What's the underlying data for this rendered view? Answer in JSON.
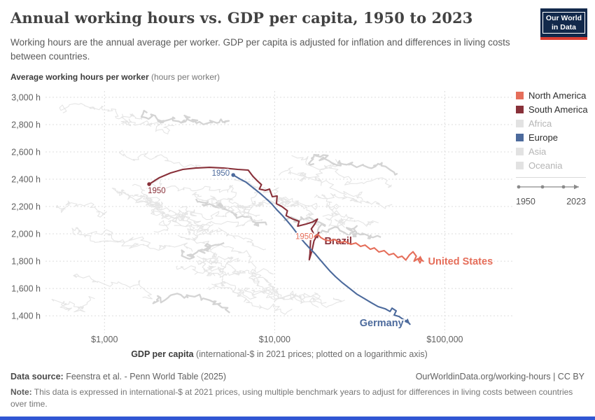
{
  "header": {
    "title": "Annual working hours vs. GDP per capita, 1950 to 2023",
    "subtitle": "Working hours are the annual average per worker. GDP per capita is adjusted for inflation and differences in living costs between countries.",
    "logo": {
      "line1": "Our World",
      "line2": "in Data",
      "bg_color": "#12294b",
      "accent_color": "#dc3e32"
    }
  },
  "legend": {
    "items": [
      {
        "label": "North America",
        "color": "#e56e5a",
        "active": true
      },
      {
        "label": "South America",
        "color": "#883039",
        "active": true
      },
      {
        "label": "Africa",
        "color": "#e2e2e2",
        "active": false
      },
      {
        "label": "Europe",
        "color": "#4c6a9c",
        "active": true
      },
      {
        "label": "Asia",
        "color": "#e2e2e2",
        "active": false
      },
      {
        "label": "Oceania",
        "color": "#e2e2e2",
        "active": false
      }
    ],
    "timeline": {
      "start": "1950",
      "end": "2023"
    }
  },
  "footer": {
    "source_prefix": "Data source:",
    "source_text": " Feenstra et al. - Penn World Table (2025)",
    "link_text": "OurWorldinData.org/working-hours | CC BY",
    "note_prefix": "Note:",
    "note_text": " This data is expressed in international-$ at 2021 prices, using multiple benchmark years to adjust for differences in living costs between countries over time."
  },
  "chart_data": {
    "type": "line",
    "title": "Annual working hours vs. GDP per capita, 1950 to 2023",
    "ylabel_bold": "Average working hours per worker",
    "ylabel_rest": " (hours per worker)",
    "xlabel_bold": "GDP per capita",
    "xlabel_rest": " (international-$ in 2021 prices; plotted on a logarithmic axis)",
    "x_axis": {
      "scale": "log",
      "min": 450,
      "max": 252000,
      "ticks": [
        {
          "value": 1000,
          "label": "$1,000"
        },
        {
          "value": 10000,
          "label": "$10,000"
        },
        {
          "value": 100000,
          "label": "$100,000"
        }
      ]
    },
    "y_axis": {
      "scale": "linear",
      "min": 1303,
      "max": 3036,
      "ticks": [
        {
          "value": 1400,
          "label": "1,400 h"
        },
        {
          "value": 1600,
          "label": "1,600 h"
        },
        {
          "value": 1800,
          "label": "1,800 h"
        },
        {
          "value": 2000,
          "label": "2,000 h"
        },
        {
          "value": 2200,
          "label": "2,200 h"
        },
        {
          "value": 2400,
          "label": "2,400 h"
        },
        {
          "value": 2600,
          "label": "2,600 h"
        },
        {
          "value": 2800,
          "label": "2,800 h"
        },
        {
          "value": 3000,
          "label": "3,000 h"
        }
      ]
    },
    "grid": {
      "on": true,
      "color": "#dcdcdc",
      "dash": "2,3"
    },
    "legend_position": "right",
    "year_range": {
      "start": 1950,
      "end": 2023
    },
    "series": [
      {
        "name": "Brazil",
        "continent": "South America",
        "color": "#883039",
        "start_year_label": {
          "text": "1950",
          "anchor": "start",
          "dx": -2,
          "dy": 13
        },
        "end_label": {
          "text": "Brazil",
          "anchor": "start",
          "dx": 8,
          "dy": 17
        },
        "points": [
          [
            1830,
            2364
          ],
          [
            2090,
            2410
          ],
          [
            2440,
            2446
          ],
          [
            2890,
            2472
          ],
          [
            3430,
            2482
          ],
          [
            4140,
            2487
          ],
          [
            5010,
            2482
          ],
          [
            6060,
            2472
          ],
          [
            6990,
            2467
          ],
          [
            7450,
            2421
          ],
          [
            7890,
            2390
          ],
          [
            8360,
            2360
          ],
          [
            8130,
            2328
          ],
          [
            8840,
            2318
          ],
          [
            9330,
            2328
          ],
          [
            9690,
            2272
          ],
          [
            10340,
            2277
          ],
          [
            10240,
            2221
          ],
          [
            11030,
            2200
          ],
          [
            11890,
            2169
          ],
          [
            11670,
            2133
          ],
          [
            12800,
            2108
          ],
          [
            13920,
            2092
          ],
          [
            13660,
            2056
          ],
          [
            15330,
            2072
          ],
          [
            16720,
            2087
          ],
          [
            17850,
            2108
          ],
          [
            17210,
            2072
          ],
          [
            16420,
            2036
          ],
          [
            16880,
            2005
          ],
          [
            16270,
            1959
          ],
          [
            16120,
            1856
          ],
          [
            15970,
            1810
          ],
          [
            16570,
            1877
          ],
          [
            17040,
            1949
          ],
          [
            17690,
            1985
          ],
          [
            18180,
            2010
          ]
        ]
      },
      {
        "name": "Germany",
        "continent": "Europe",
        "color": "#4c6a9c",
        "start_year_label": {
          "text": "1950",
          "anchor": "end",
          "dx": -5,
          "dy": 1
        },
        "end_label": {
          "text": "Germany",
          "anchor": "end",
          "dx": -9,
          "dy": 3
        },
        "points": [
          [
            5710,
            2431
          ],
          [
            6280,
            2400
          ],
          [
            6770,
            2379
          ],
          [
            7450,
            2338
          ],
          [
            8200,
            2297
          ],
          [
            8840,
            2262
          ],
          [
            9590,
            2221
          ],
          [
            10240,
            2179
          ],
          [
            11030,
            2138
          ],
          [
            11890,
            2092
          ],
          [
            12660,
            2051
          ],
          [
            13420,
            2010
          ],
          [
            14190,
            1969
          ],
          [
            15040,
            1933
          ],
          [
            16120,
            1892
          ],
          [
            17210,
            1856
          ],
          [
            18350,
            1815
          ],
          [
            19580,
            1774
          ],
          [
            21110,
            1728
          ],
          [
            22760,
            1687
          ],
          [
            25060,
            1641
          ],
          [
            27580,
            1600
          ],
          [
            30370,
            1559
          ],
          [
            33430,
            1528
          ],
          [
            36810,
            1497
          ],
          [
            40530,
            1467
          ],
          [
            44620,
            1451
          ],
          [
            47650,
            1431
          ],
          [
            49010,
            1456
          ],
          [
            51800,
            1436
          ],
          [
            50390,
            1405
          ],
          [
            53800,
            1395
          ],
          [
            56900,
            1374
          ],
          [
            59000,
            1364
          ],
          [
            61200,
            1349
          ],
          [
            62400,
            1338
          ]
        ]
      },
      {
        "name": "United States",
        "continent": "North America",
        "color": "#e56e5a",
        "start_year_label": {
          "text": "1950",
          "anchor": "end",
          "dx": 3,
          "dy": 1
        },
        "end_label": {
          "text": "United States",
          "anchor": "start",
          "dx": 7,
          "dy": 5
        },
        "points": [
          [
            16400,
            1967
          ],
          [
            17200,
            1980
          ],
          [
            18000,
            1995
          ],
          [
            18600,
            1974
          ],
          [
            19500,
            1959
          ],
          [
            21000,
            1949
          ],
          [
            22500,
            1959
          ],
          [
            24000,
            1936
          ],
          [
            26000,
            1944
          ],
          [
            28000,
            1923
          ],
          [
            30000,
            1933
          ],
          [
            32000,
            1908
          ],
          [
            34000,
            1918
          ],
          [
            36500,
            1887
          ],
          [
            38500,
            1897
          ],
          [
            41000,
            1867
          ],
          [
            44000,
            1877
          ],
          [
            47000,
            1846
          ],
          [
            50000,
            1856
          ],
          [
            53000,
            1826
          ],
          [
            56000,
            1836
          ],
          [
            59000,
            1808
          ],
          [
            62000,
            1846
          ],
          [
            65000,
            1869
          ],
          [
            68000,
            1836
          ],
          [
            66000,
            1800
          ],
          [
            69500,
            1818
          ],
          [
            71500,
            1787
          ],
          [
            73000,
            1810
          ],
          [
            74600,
            1800
          ]
        ]
      }
    ],
    "background": {
      "count": 46,
      "seed": 11,
      "color": "#e5e5e5",
      "highlight_color": "#d4d4d4"
    }
  }
}
